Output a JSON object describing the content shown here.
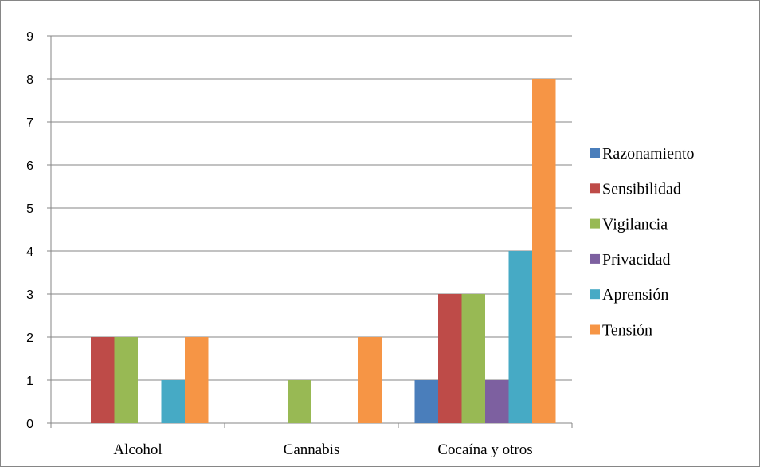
{
  "chart_data": {
    "type": "bar",
    "categories": [
      "Alcohol",
      "Cannabis",
      "Cocaína y otros"
    ],
    "series": [
      {
        "name": "Razonamiento",
        "color": "#4A7EBB",
        "values": [
          0,
          0,
          1
        ]
      },
      {
        "name": "Sensibilidad",
        "color": "#BE4B48",
        "values": [
          2,
          0,
          3
        ]
      },
      {
        "name": "Vigilancia",
        "color": "#98B954",
        "values": [
          2,
          1,
          3
        ]
      },
      {
        "name": "Privacidad",
        "color": "#7D60A0",
        "values": [
          0,
          0,
          1
        ]
      },
      {
        "name": "Aprensión",
        "color": "#46AAC5",
        "values": [
          1,
          0,
          4
        ]
      },
      {
        "name": "Tensión",
        "color": "#F69545",
        "values": [
          2,
          2,
          8
        ]
      }
    ],
    "y_ticks": [
      "0",
      "1",
      "2",
      "3",
      "4",
      "5",
      "6",
      "7",
      "8",
      "9"
    ],
    "ylim": [
      0,
      9
    ],
    "grid": true,
    "legend_position": "right",
    "title": "",
    "xlabel": "",
    "ylabel": ""
  }
}
